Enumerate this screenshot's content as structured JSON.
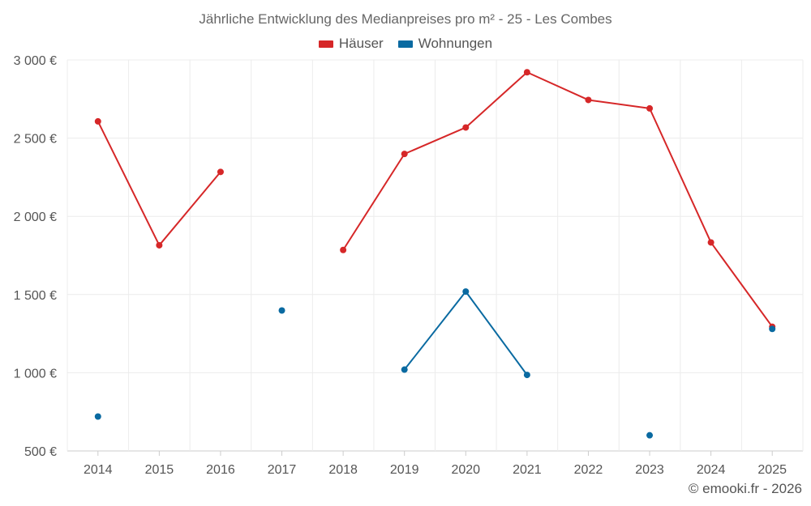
{
  "chart_data": {
    "type": "line",
    "title": "Jährliche Entwicklung des Medianpreises pro m² - 25 - Les Combes",
    "xlabel": "",
    "ylabel": "",
    "categories": [
      "2014",
      "2015",
      "2016",
      "2017",
      "2018",
      "2019",
      "2020",
      "2021",
      "2022",
      "2023",
      "2024",
      "2025"
    ],
    "ylim": [
      500,
      3000
    ],
    "yticks": [
      500,
      1000,
      1500,
      2000,
      2500,
      3000
    ],
    "ytick_labels": [
      "500 €",
      "1 000 €",
      "1 500 €",
      "2 000 €",
      "2 500 €",
      "3 000 €"
    ],
    "grid": true,
    "legend_position": "top-center",
    "series": [
      {
        "name": "Häuser",
        "color": "#d62728",
        "values": [
          2607,
          1815,
          2284,
          null,
          1785,
          2399,
          2568,
          2921,
          2744,
          2690,
          1833,
          1294
        ]
      },
      {
        "name": "Wohnungen",
        "color": "#0a6aa1",
        "values": [
          720,
          null,
          null,
          1398,
          null,
          1020,
          1519,
          986,
          null,
          600,
          null,
          1280
        ]
      }
    ]
  },
  "footer": {
    "credit": "© emooki.fr - 2026"
  }
}
